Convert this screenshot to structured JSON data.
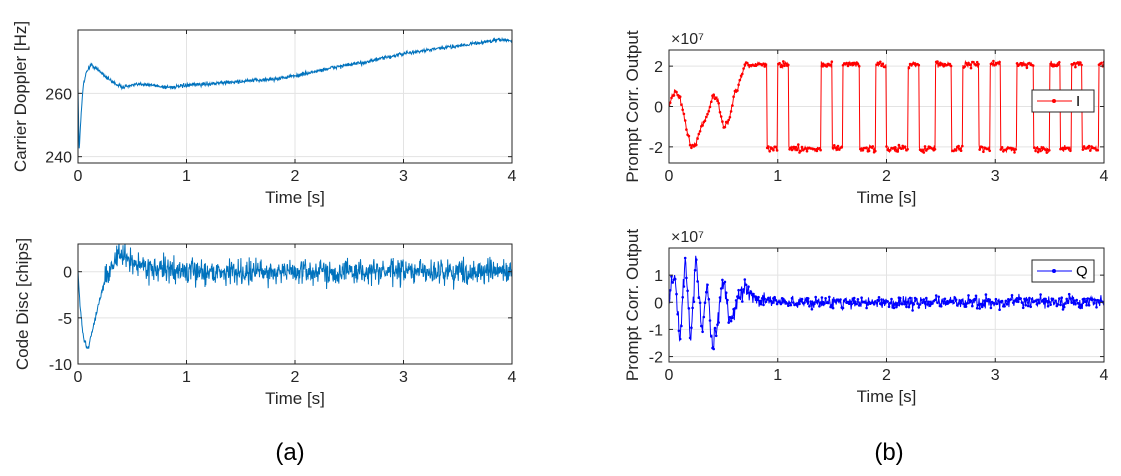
{
  "captions": {
    "a": "(a)",
    "b": "(b)"
  },
  "chart_data": [
    {
      "id": "carrier",
      "type": "line",
      "title": "",
      "xlabel": "Time [s]",
      "ylabel": "Carrier Doppler [Hz]",
      "xlim": [
        0,
        4
      ],
      "ylim": [
        238,
        280
      ],
      "xticks": [
        0,
        1,
        2,
        3,
        4
      ],
      "xtick_labels": [
        "0",
        "1",
        "2",
        "3",
        "4"
      ],
      "yticks": [
        240,
        260
      ],
      "ytick_labels": [
        "240",
        "260"
      ],
      "grid": true,
      "series": [
        {
          "name": "carrier doppler",
          "color": "#0072BD",
          "noise": 0.6,
          "x": [
            0,
            0.01,
            0.03,
            0.05,
            0.08,
            0.12,
            0.16,
            0.2,
            0.3,
            0.4,
            0.5,
            0.6,
            0.7,
            0.8,
            0.9,
            1.0,
            1.2,
            1.4,
            1.6,
            1.8,
            2.0,
            2.2,
            2.4,
            2.6,
            2.8,
            3.0,
            3.2,
            3.4,
            3.6,
            3.8,
            3.9,
            4.0
          ],
          "y": [
            262,
            242,
            254,
            263,
            267,
            269,
            268,
            267,
            264,
            262,
            262.5,
            263,
            262.5,
            262,
            262,
            262.5,
            263,
            263.5,
            264,
            264.5,
            265.5,
            267,
            268.5,
            269.5,
            271,
            272.5,
            273.5,
            274.5,
            275.5,
            276.5,
            277,
            276.5
          ]
        }
      ]
    },
    {
      "id": "codedisc",
      "type": "line",
      "title": "",
      "xlabel": "Time [s]",
      "ylabel": "Code Disc [chips]",
      "xlim": [
        0,
        4
      ],
      "ylim": [
        -10,
        3
      ],
      "xticks": [
        0,
        1,
        2,
        3,
        4
      ],
      "xtick_labels": [
        "0",
        "1",
        "2",
        "3",
        "4"
      ],
      "yticks": [
        -10,
        -5,
        0
      ],
      "ytick_labels": [
        "-10",
        "-5",
        "0"
      ],
      "grid": true,
      "series": [
        {
          "name": "code disc",
          "color": "#0072BD",
          "noise": 1.3,
          "x": [
            0,
            0.02,
            0.05,
            0.08,
            0.1,
            0.15,
            0.2,
            0.25,
            0.3,
            0.35,
            0.4,
            0.5,
            0.7,
            1.0,
            2.0,
            3.0,
            4.0
          ],
          "y": [
            0,
            -4,
            -7,
            -8.3,
            -8,
            -5.5,
            -3,
            -1,
            0.5,
            1.5,
            1.8,
            1.0,
            0.3,
            0,
            0,
            0,
            0
          ]
        }
      ]
    },
    {
      "id": "prompt-i",
      "type": "line",
      "title": "",
      "xlabel": "Time [s]",
      "ylabel": "Prompt Corr. Output",
      "exponent": "×10⁷",
      "xlim": [
        0,
        4
      ],
      "ylim": [
        -2.8,
        2.8
      ],
      "xticks": [
        0,
        1,
        2,
        3,
        4
      ],
      "xtick_labels": [
        "0",
        "1",
        "2",
        "3",
        "4"
      ],
      "yticks": [
        -2,
        0,
        2
      ],
      "ytick_labels": [
        "-2",
        "0",
        "2"
      ],
      "grid": true,
      "legend": {
        "location": "top-right",
        "entries": [
          "I"
        ]
      },
      "series": [
        {
          "name": "I",
          "color": "#FF0000",
          "markers": true,
          "noise": 0.15,
          "x": [
            0,
            0.05,
            0.1,
            0.15,
            0.2,
            0.25,
            0.3,
            0.35,
            0.4,
            0.45,
            0.5,
            0.55,
            0.6,
            0.7,
            0.8,
            4.0
          ],
          "y": [
            0,
            0.8,
            0.5,
            -0.8,
            -2.0,
            -1.8,
            -1.0,
            -0.5,
            0.5,
            0.3,
            -1.0,
            -0.8,
            0.5,
            2.0,
            2.1,
            2.1
          ],
          "switches": [
            0.9,
            1.0,
            1.1,
            1.4,
            1.5,
            1.6,
            1.75,
            1.9,
            2.0,
            2.2,
            2.3,
            2.45,
            2.6,
            2.7,
            2.85,
            2.95,
            3.05,
            3.2,
            3.35,
            3.5,
            3.6,
            3.7,
            3.8,
            3.95
          ],
          "level": 2.1
        }
      ]
    },
    {
      "id": "prompt-q",
      "type": "line",
      "title": "",
      "xlabel": "Time [s]",
      "ylabel": "Prompt Corr. Output",
      "exponent": "×10⁷",
      "xlim": [
        0,
        4
      ],
      "ylim": [
        -2.2,
        2.0
      ],
      "xticks": [
        0,
        1,
        2,
        3,
        4
      ],
      "xtick_labels": [
        "0",
        "1",
        "2",
        "3",
        "4"
      ],
      "yticks": [
        -2,
        -1,
        0,
        1
      ],
      "ytick_labels": [
        "-2",
        "-1",
        "0",
        "1"
      ],
      "grid": true,
      "legend": {
        "location": "top-right",
        "entries": [
          "Q"
        ]
      },
      "series": [
        {
          "name": "Q",
          "color": "#0000FF",
          "markers": true,
          "noise": 0.22,
          "x": [
            0,
            0.05,
            0.1,
            0.15,
            0.2,
            0.25,
            0.3,
            0.35,
            0.4,
            0.45,
            0.5,
            0.55,
            0.6,
            0.7,
            0.8,
            1.0,
            4.0
          ],
          "y": [
            0,
            1.2,
            -1.5,
            1.7,
            -1.5,
            1.8,
            -1.2,
            0.8,
            -1.8,
            -0.5,
            1.0,
            -0.6,
            -0.3,
            0.5,
            0.1,
            0,
            0
          ]
        }
      ]
    }
  ]
}
